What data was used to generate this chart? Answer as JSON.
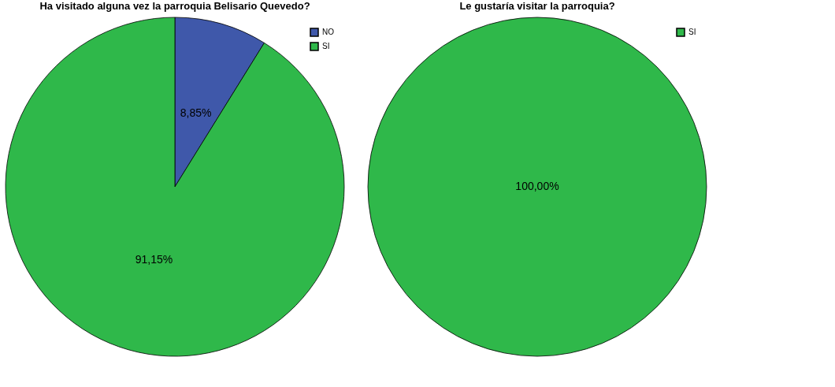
{
  "chart_data": [
    {
      "type": "pie",
      "title": "Ha visitado alguna vez la parroquia Belisario Quevedo?",
      "categories": [
        "NO",
        "SI"
      ],
      "values": [
        8.85,
        91.15
      ],
      "colors": [
        "#3f58aa",
        "#2fb84a"
      ],
      "value_labels": [
        "8,85%",
        "91,15%"
      ],
      "legend": "top right"
    },
    {
      "type": "pie",
      "title": "Le gustaría visitar la parroquia?",
      "categories": [
        "SI"
      ],
      "values": [
        100
      ],
      "colors": [
        "#2fb84a"
      ],
      "value_labels": [
        "100,00%"
      ],
      "legend": "top right"
    }
  ]
}
